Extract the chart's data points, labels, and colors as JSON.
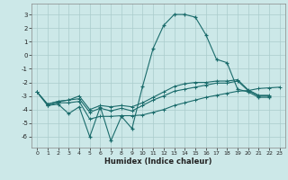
{
  "bg_color": "#cce8e8",
  "grid_color": "#aacccc",
  "line_color": "#1a6b6b",
  "xlabel": "Humidex (Indice chaleur)",
  "xlim": [
    -0.5,
    23.5
  ],
  "ylim": [
    -6.8,
    3.8
  ],
  "xticks": [
    0,
    1,
    2,
    3,
    4,
    5,
    6,
    7,
    8,
    9,
    10,
    11,
    12,
    13,
    14,
    15,
    16,
    17,
    18,
    19,
    20,
    21,
    22,
    23
  ],
  "yticks": [
    -6,
    -5,
    -4,
    -3,
    -2,
    -1,
    0,
    1,
    2,
    3
  ],
  "series1_x": [
    1,
    2,
    3,
    4,
    5,
    6,
    7,
    8,
    9,
    10,
    11,
    12,
    13,
    14,
    15,
    16,
    17,
    18,
    19,
    20,
    21,
    22
  ],
  "series1_y": [
    -3.7,
    -3.6,
    -4.3,
    -3.8,
    -6.0,
    -3.8,
    -6.3,
    -4.5,
    -5.4,
    -2.3,
    0.5,
    2.2,
    3.0,
    3.0,
    2.8,
    1.5,
    -0.3,
    -0.55,
    -2.5,
    -2.7,
    -3.1,
    -3.1
  ],
  "series2_x": [
    0,
    1,
    2,
    3,
    4,
    5,
    6,
    7,
    8,
    9,
    10,
    11,
    12,
    13,
    14,
    15,
    16,
    17,
    18,
    19,
    20,
    21,
    22,
    23
  ],
  "series2_y": [
    -2.7,
    -3.7,
    -3.5,
    -3.5,
    -3.4,
    -4.7,
    -4.5,
    -4.5,
    -4.45,
    -4.45,
    -4.4,
    -4.2,
    -4.0,
    -3.7,
    -3.5,
    -3.3,
    -3.1,
    -2.95,
    -2.8,
    -2.65,
    -2.6,
    -2.45,
    -2.4,
    -2.35
  ],
  "series3_x": [
    0,
    1,
    2,
    3,
    4,
    5,
    6,
    7,
    8,
    9,
    10,
    11,
    12,
    13,
    14,
    15,
    16,
    17,
    18,
    19,
    20,
    21,
    22
  ],
  "series3_y": [
    -2.7,
    -3.6,
    -3.4,
    -3.3,
    -3.2,
    -4.2,
    -3.9,
    -4.1,
    -3.9,
    -4.1,
    -3.7,
    -3.3,
    -3.0,
    -2.65,
    -2.5,
    -2.35,
    -2.2,
    -2.05,
    -2.05,
    -1.9,
    -2.6,
    -3.0,
    -3.0
  ],
  "series4_x": [
    0,
    1,
    2,
    3,
    4,
    5,
    6,
    7,
    8,
    9,
    10,
    11,
    12,
    13,
    14,
    15,
    16,
    17,
    18,
    19,
    20,
    21,
    22
  ],
  "series4_y": [
    -2.7,
    -3.6,
    -3.4,
    -3.3,
    -3.0,
    -4.0,
    -3.7,
    -3.8,
    -3.7,
    -3.8,
    -3.5,
    -3.1,
    -2.7,
    -2.3,
    -2.1,
    -2.0,
    -2.0,
    -1.9,
    -1.9,
    -1.8,
    -2.55,
    -2.95,
    -2.95
  ]
}
